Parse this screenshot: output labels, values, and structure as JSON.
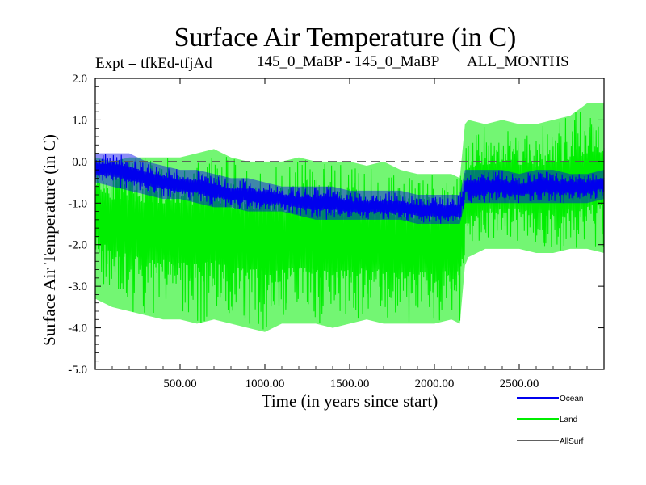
{
  "chart_data": {
    "type": "line",
    "title": "Surface Air Temperature (in C)",
    "subtitle_left": "Expt = tfkEd-tfjAd",
    "subtitle_center": "145_0_MaBP - 145_0_MaBP",
    "subtitle_right": "ALL_MONTHS",
    "xlabel": "Time (in years since start)",
    "ylabel": "Surface Air Temperature (in C)",
    "xlim": [
      0,
      3000
    ],
    "ylim": [
      -5.0,
      2.0
    ],
    "xticks": [
      500,
      1000,
      1500,
      2000,
      2500
    ],
    "xtick_labels": [
      "500.00",
      "1000.00",
      "1500.00",
      "2000.00",
      "2500.00"
    ],
    "yticks": [
      2.0,
      1.0,
      0.0,
      -1.0,
      -2.0,
      -3.0,
      -4.0,
      -5.0
    ],
    "ytick_labels": [
      "2.0",
      "1.0",
      "0.0",
      "-1.0",
      "-2.0",
      "-3.0",
      "-4.0",
      "-5.0"
    ],
    "reference_line": {
      "y": 0.0,
      "style": "dashed"
    },
    "series": [
      {
        "name": "Land",
        "color": "#00ee00",
        "x": [
          0,
          100,
          200,
          300,
          400,
          500,
          600,
          700,
          800,
          900,
          1000,
          1100,
          1200,
          1300,
          1400,
          1500,
          1600,
          1700,
          1800,
          1900,
          2000,
          2100,
          2150,
          2180,
          2200,
          2300,
          2400,
          2500,
          2600,
          2700,
          2800,
          2900,
          3000
        ],
        "values": [
          -1.0,
          -1.4,
          -1.5,
          -1.6,
          -1.6,
          -1.6,
          -1.7,
          -1.6,
          -1.8,
          -1.8,
          -1.8,
          -1.9,
          -1.8,
          -1.9,
          -1.9,
          -1.9,
          -1.9,
          -1.9,
          -2.0,
          -2.0,
          -2.0,
          -1.9,
          -2.0,
          -1.0,
          -0.8,
          -0.6,
          -0.6,
          -0.6,
          -0.7,
          -0.6,
          -0.6,
          -0.5,
          -0.4
        ],
        "spread_low": [
          -3.3,
          -3.5,
          -3.6,
          -3.7,
          -3.8,
          -3.8,
          -3.9,
          -3.8,
          -3.9,
          -4.0,
          -4.1,
          -3.9,
          -3.9,
          -3.9,
          -4.0,
          -3.9,
          -3.8,
          -3.9,
          -3.9,
          -3.9,
          -3.9,
          -3.8,
          -3.9,
          -2.5,
          -2.3,
          -2.1,
          -2.1,
          -2.1,
          -2.2,
          -2.2,
          -2.1,
          -2.1,
          -2.2
        ],
        "spread_high": [
          0.1,
          0.0,
          0.1,
          0.1,
          0.1,
          0.1,
          0.2,
          0.3,
          0.1,
          0.0,
          0.0,
          0.0,
          0.1,
          0.0,
          0.0,
          0.0,
          -0.1,
          0.0,
          -0.2,
          -0.3,
          -0.3,
          -0.3,
          -0.4,
          0.9,
          1.0,
          0.9,
          1.0,
          0.9,
          0.9,
          1.0,
          1.1,
          1.4,
          1.4
        ]
      },
      {
        "name": "Ocean",
        "color": "#0000ee",
        "x": [
          0,
          100,
          200,
          300,
          400,
          500,
          600,
          700,
          800,
          900,
          1000,
          1100,
          1200,
          1300,
          1400,
          1500,
          1600,
          1700,
          1800,
          1900,
          2000,
          2100,
          2150,
          2180,
          2200,
          2300,
          2400,
          2500,
          2600,
          2700,
          2800,
          2900,
          3000
        ],
        "values": [
          -0.2,
          -0.2,
          -0.3,
          -0.4,
          -0.5,
          -0.6,
          -0.6,
          -0.7,
          -0.8,
          -0.8,
          -0.9,
          -0.9,
          -1.0,
          -1.0,
          -1.0,
          -1.1,
          -1.1,
          -1.1,
          -1.1,
          -1.2,
          -1.2,
          -1.2,
          -1.2,
          -0.6,
          -0.6,
          -0.6,
          -0.6,
          -0.7,
          -0.6,
          -0.6,
          -0.6,
          -0.6,
          -0.5
        ],
        "spread_low": [
          -0.5,
          -0.6,
          -0.7,
          -0.8,
          -0.9,
          -0.9,
          -1.0,
          -1.1,
          -1.1,
          -1.2,
          -1.2,
          -1.2,
          -1.3,
          -1.4,
          -1.4,
          -1.4,
          -1.4,
          -1.4,
          -1.4,
          -1.5,
          -1.5,
          -1.5,
          -1.5,
          -1.0,
          -1.0,
          -1.0,
          -1.0,
          -1.0,
          -1.0,
          -1.0,
          -1.0,
          -1.0,
          -0.9
        ],
        "spread_high": [
          0.2,
          0.2,
          0.2,
          0.0,
          -0.1,
          -0.2,
          -0.2,
          -0.3,
          -0.4,
          -0.4,
          -0.5,
          -0.6,
          -0.6,
          -0.6,
          -0.6,
          -0.7,
          -0.7,
          -0.7,
          -0.7,
          -0.8,
          -0.8,
          -0.8,
          -0.8,
          -0.2,
          -0.2,
          -0.2,
          -0.2,
          -0.3,
          -0.2,
          -0.2,
          -0.3,
          -0.3,
          -0.2
        ]
      },
      {
        "name": "AllSurf",
        "color": "#000000",
        "x": [],
        "values": []
      }
    ],
    "legend": {
      "placement": "bottom-right",
      "items": [
        "Ocean",
        "Land",
        "AllSurf"
      ]
    }
  }
}
